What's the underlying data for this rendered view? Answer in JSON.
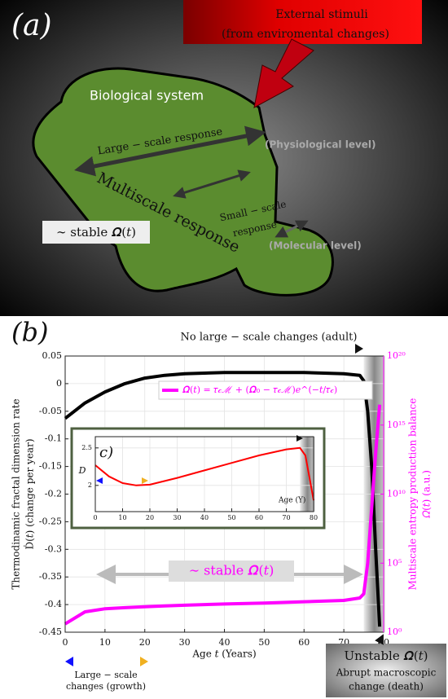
{
  "panel_a": {
    "label": "(a)",
    "stimuli": [
      "External stimuli",
      "(from enviromental changes)"
    ],
    "system": "Biological system",
    "large_response": "Large − scale response",
    "physiological": "(Physiological level)",
    "multiscale": "Multiscale response",
    "small_response": [
      "Small − scale",
      "response"
    ],
    "molecular": "(Molecular level)",
    "stable": "∼ stable 𝜴(𝑡)"
  },
  "panel_b_label": "(b)",
  "chart_data": [
    {
      "type": "line",
      "xlabel": "Age 𝑡 (Years)",
      "ylabel": [
        "Thermodinamic fractal dimension rate",
        "Ḋ(𝑡) (change per year)"
      ],
      "y2label": [
        "Multiscale entropy production balance",
        "𝛺(𝑡) (a.u.)"
      ],
      "x": [
        0,
        5,
        10,
        15,
        20,
        25,
        30,
        40,
        50,
        60,
        70,
        74,
        75,
        76,
        77,
        78,
        79
      ],
      "series": [
        {
          "color": "#000000",
          "values": [
            -0.063,
            -0.035,
            -0.015,
            0,
            0.01,
            0.015,
            0.018,
            0.02,
            0.02,
            0.02,
            0.018,
            0.015,
            0.005,
            -0.05,
            -0.15,
            -0.3,
            -0.44
          ]
        },
        {
          "name": "𝜴(𝑡) = 𝜏𝒸ℳ + (𝜴₀ − 𝜏𝒸ℳ)𝑒^(−𝑡/𝜏𝒸)",
          "color": "#ff00ff",
          "axis": "y2",
          "values": [
            4,
            30,
            50,
            60,
            70,
            80,
            90,
            110,
            130,
            160,
            200,
            300,
            600,
            100000,
            1000000000,
            10000000000000,
            30000000000000000
          ]
        }
      ],
      "xlim": [
        0,
        80
      ],
      "xticks": [
        0,
        10,
        20,
        30,
        40,
        50,
        60,
        70,
        80
      ],
      "ylim": [
        -0.45,
        0.05
      ],
      "yticks": [
        0.05,
        0,
        -0.05,
        -0.1,
        -0.15,
        -0.2,
        -0.25,
        -0.3,
        -0.35,
        -0.4,
        -0.45
      ],
      "y2lim": [
        1,
        100000000000000000000
      ],
      "y2scale": "log",
      "y2ticks": [
        {
          "value": 1,
          "label": "10⁰"
        },
        {
          "value": 100000,
          "label": "10⁵"
        },
        {
          "value": 10000000000,
          "label": "10¹⁰"
        },
        {
          "value": 1000000000000000,
          "label": "10¹⁵"
        },
        {
          "value": 100000000000000000000,
          "label": "10²⁰"
        }
      ],
      "shaded_region": [
        75,
        80
      ],
      "grid": true,
      "legend": "upper right",
      "annotations": [
        "No large − scale changes (adult)",
        "∼ stable 𝜴(𝑡)",
        "Large − scale",
        "changes (growth)",
        "Unstable 𝜴(𝑡)",
        "Abrupt macroscopic",
        "change (death)"
      ]
    },
    {
      "type": "line",
      "title": "c)",
      "ylabel": "𝐷",
      "xlabel": "Age (Y)",
      "x": [
        0,
        5,
        10,
        15,
        20,
        30,
        40,
        50,
        60,
        70,
        75,
        77,
        79,
        80
      ],
      "series": [
        {
          "color": "#ff0000",
          "values": [
            2.27,
            2.12,
            2.03,
            2.0,
            2.01,
            2.1,
            2.2,
            2.3,
            2.4,
            2.48,
            2.5,
            2.4,
            2.0,
            1.8
          ]
        }
      ],
      "xlim": [
        0,
        80
      ],
      "xticks": [
        0,
        10,
        20,
        30,
        40,
        50,
        60,
        70,
        80
      ],
      "ylim": [
        1.65,
        2.65
      ],
      "yticks": [
        2,
        2.5
      ],
      "shaded_region": [
        75,
        80
      ],
      "grid": true
    }
  ]
}
